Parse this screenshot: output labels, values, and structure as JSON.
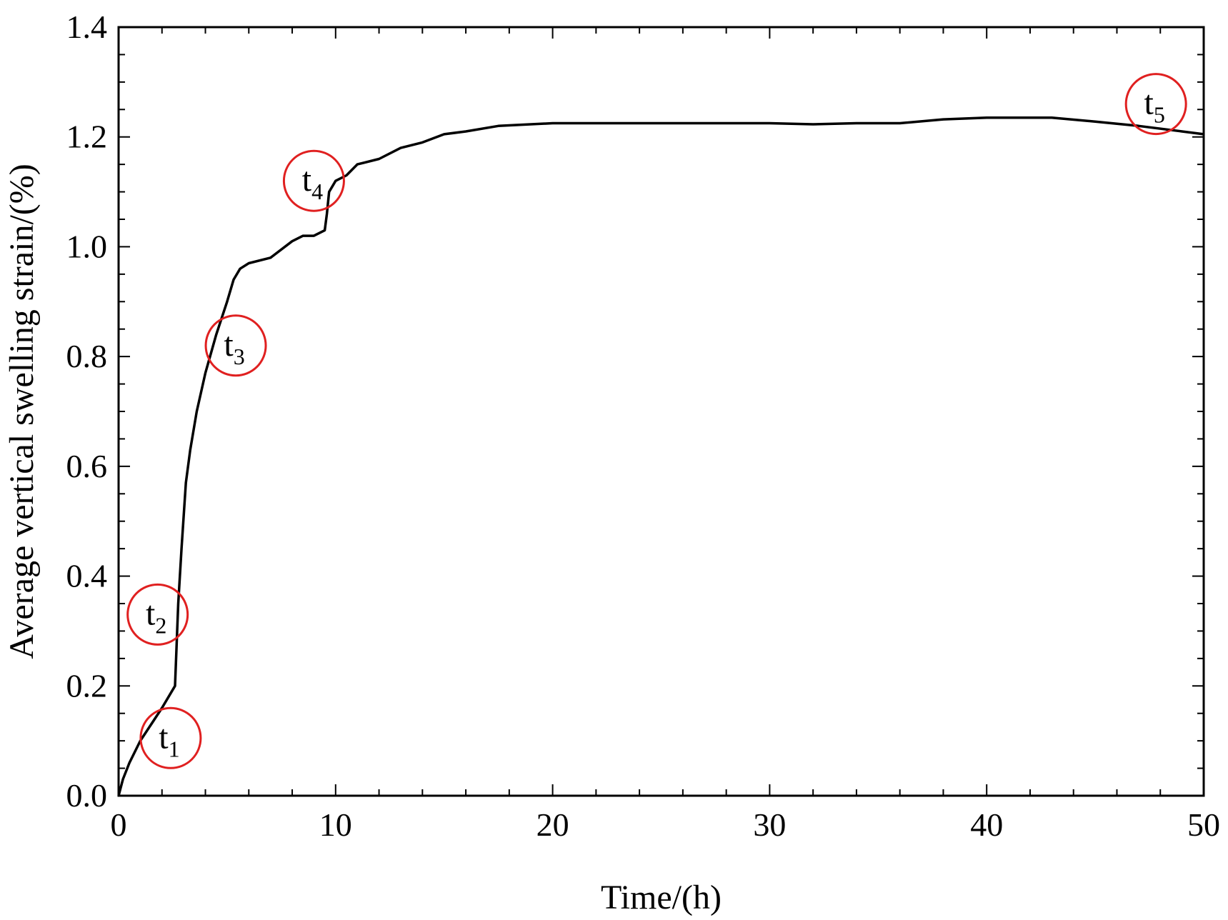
{
  "chart_data": {
    "type": "line",
    "title": "",
    "xlabel": "Time/(h)",
    "ylabel": "Average vertical swelling strain/(%)",
    "xlim": [
      0,
      50
    ],
    "ylim": [
      0,
      1.4
    ],
    "xticks": [
      0,
      10,
      20,
      30,
      40,
      50
    ],
    "yticks": [
      0.0,
      0.2,
      0.4,
      0.6,
      0.8,
      1.0,
      1.2,
      1.4
    ],
    "xtick_labels": [
      "0",
      "10",
      "20",
      "30",
      "40",
      "50"
    ],
    "ytick_labels": [
      "0.0",
      "0.2",
      "0.4",
      "0.6",
      "0.8",
      "1.0",
      "1.2",
      "1.4"
    ],
    "grid": false,
    "line_color": "#000000",
    "marker_color": "#e02020",
    "series": [
      {
        "x": [
          0,
          0.2,
          0.5,
          1.0,
          1.5,
          2.0,
          2.6,
          2.75,
          2.9,
          3.1,
          3.3,
          3.6,
          4.0,
          4.5,
          5.0,
          5.3,
          5.6,
          6.0,
          7.0,
          8.0,
          8.5,
          9.0,
          9.5,
          9.6,
          9.7,
          10.0,
          10.5,
          11.0,
          12.0,
          13.0,
          14.0,
          15.0,
          16.0,
          17.5,
          20.0,
          25.0,
          30.0,
          32.0,
          34.0,
          36.0,
          38.0,
          40.0,
          43.0,
          45.0,
          47.0,
          49.0,
          50.0
        ],
        "y": [
          0.0,
          0.03,
          0.06,
          0.1,
          0.13,
          0.16,
          0.2,
          0.35,
          0.45,
          0.57,
          0.63,
          0.7,
          0.77,
          0.84,
          0.9,
          0.94,
          0.96,
          0.97,
          0.98,
          1.01,
          1.02,
          1.02,
          1.03,
          1.06,
          1.1,
          1.12,
          1.13,
          1.15,
          1.16,
          1.18,
          1.19,
          1.205,
          1.21,
          1.22,
          1.225,
          1.225,
          1.225,
          1.223,
          1.225,
          1.225,
          1.232,
          1.235,
          1.235,
          1.228,
          1.22,
          1.21,
          1.205
        ]
      }
    ],
    "annotations": [
      {
        "base": "t",
        "sub": "1",
        "x": 2.4,
        "y": 0.105
      },
      {
        "base": "t",
        "sub": "2",
        "x": 1.8,
        "y": 0.33
      },
      {
        "base": "t",
        "sub": "3",
        "x": 5.4,
        "y": 0.82
      },
      {
        "base": "t",
        "sub": "4",
        "x": 9.0,
        "y": 1.12
      },
      {
        "base": "t",
        "sub": "5",
        "x": 47.8,
        "y": 1.26
      }
    ]
  }
}
